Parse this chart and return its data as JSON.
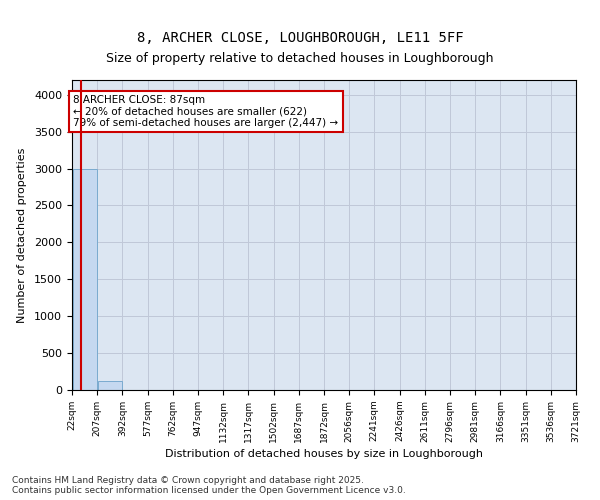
{
  "title_line1": "8, ARCHER CLOSE, LOUGHBOROUGH, LE11 5FF",
  "title_line2": "Size of property relative to detached houses in Loughborough",
  "xlabel": "Distribution of detached houses by size in Loughborough",
  "ylabel": "Number of detached properties",
  "bar_edges": [
    22,
    207,
    392,
    577,
    762,
    947,
    1132,
    1317,
    1502,
    1687,
    1872,
    2056,
    2241,
    2426,
    2611,
    2796,
    2981,
    3166,
    3351,
    3536,
    3721
  ],
  "bar_heights": [
    3000,
    120,
    0,
    0,
    0,
    0,
    0,
    0,
    0,
    0,
    0,
    0,
    0,
    0,
    0,
    0,
    0,
    0,
    0,
    0
  ],
  "bar_color": "#c5d8f0",
  "bar_edgecolor": "#7aaacf",
  "property_size": 87,
  "property_line_color": "#cc0000",
  "annotation_text": "8 ARCHER CLOSE: 87sqm\n← 20% of detached houses are smaller (622)\n79% of semi-detached houses are larger (2,447) →",
  "annotation_box_color": "#cc0000",
  "annotation_text_color": "#000000",
  "ylim": [
    0,
    4200
  ],
  "yticks": [
    0,
    500,
    1000,
    1500,
    2000,
    2500,
    3000,
    3500,
    4000
  ],
  "tick_labels": [
    "22sqm",
    "207sqm",
    "392sqm",
    "577sqm",
    "762sqm",
    "947sqm",
    "1132sqm",
    "1317sqm",
    "1502sqm",
    "1687sqm",
    "1872sqm",
    "2056sqm",
    "2241sqm",
    "2426sqm",
    "2611sqm",
    "2796sqm",
    "2981sqm",
    "3166sqm",
    "3351sqm",
    "3536sqm",
    "3721sqm"
  ],
  "grid_color": "#c0c8d8",
  "background_color": "#dce6f2",
  "footer_text": "Contains HM Land Registry data © Crown copyright and database right 2025.\nContains public sector information licensed under the Open Government Licence v3.0.",
  "fig_bg": "#ffffff"
}
